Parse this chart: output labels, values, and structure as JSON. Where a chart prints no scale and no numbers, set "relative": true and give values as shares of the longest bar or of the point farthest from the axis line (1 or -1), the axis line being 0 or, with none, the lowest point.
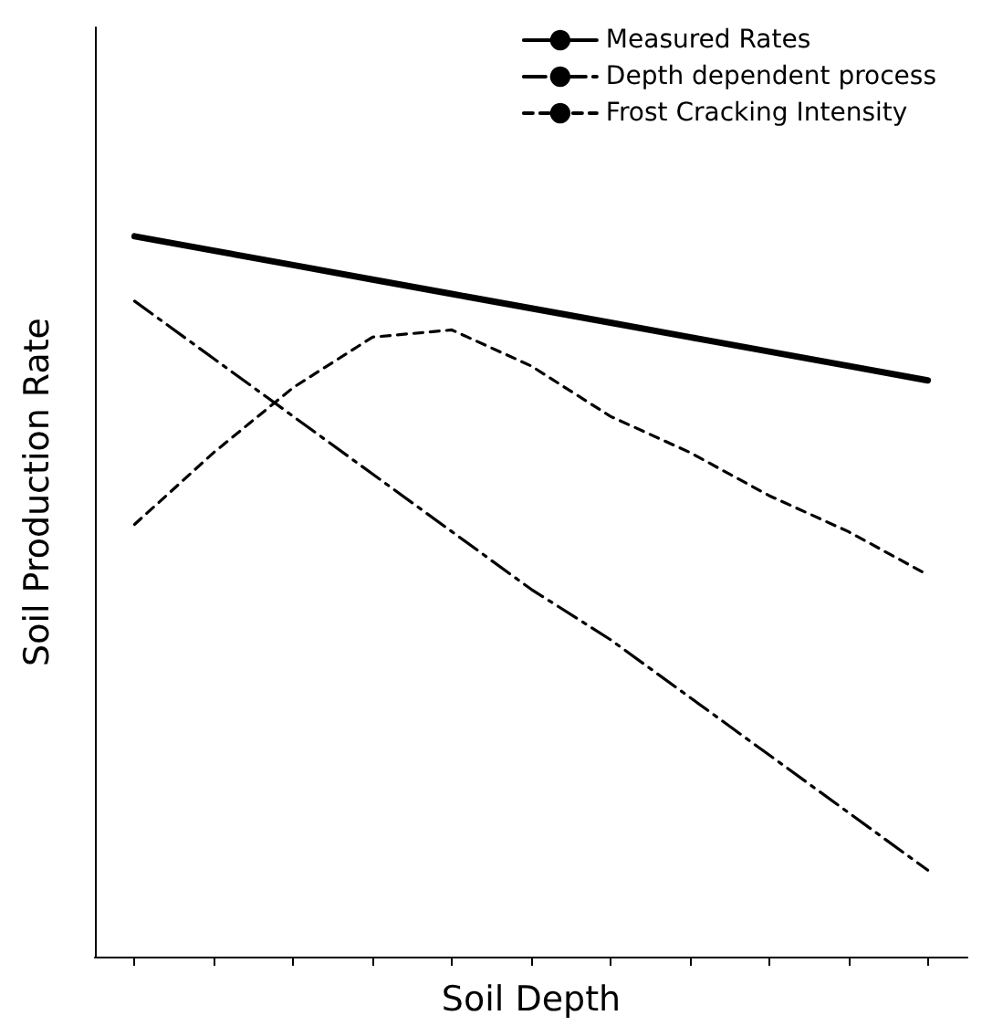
{
  "chart_data": {
    "type": "line",
    "relative": true,
    "xlabel": "Soil Depth",
    "ylabel": "Soil Production Rate",
    "legend": "top right",
    "marker": "none",
    "categories": [
      null,
      null,
      null,
      null,
      null,
      null,
      null,
      null,
      null,
      null,
      null
    ],
    "series": [
      {
        "name": "Measured Rates",
        "color": "#000000",
        "line_style": "solid",
        "values": [
          1,
          0.98,
          0.96,
          0.94,
          0.92,
          0.9,
          0.88,
          0.86,
          0.84,
          0.82,
          0.8
        ]
      },
      {
        "name": "Depth dependent process",
        "color": "#000000",
        "line_style": "dashed",
        "values": [
          0.91,
          0.83,
          0.75,
          0.67,
          0.59,
          0.51,
          0.44,
          0.36,
          0.28,
          0.2,
          0.12
        ]
      },
      {
        "name": "Frost Cracking Intensity",
        "color": "#000000",
        "line_style": "dotted",
        "values": [
          0.6,
          0.7,
          0.79,
          0.86,
          0.87,
          0.82,
          0.75,
          0.7,
          0.64,
          0.59,
          0.53
        ]
      }
    ]
  }
}
